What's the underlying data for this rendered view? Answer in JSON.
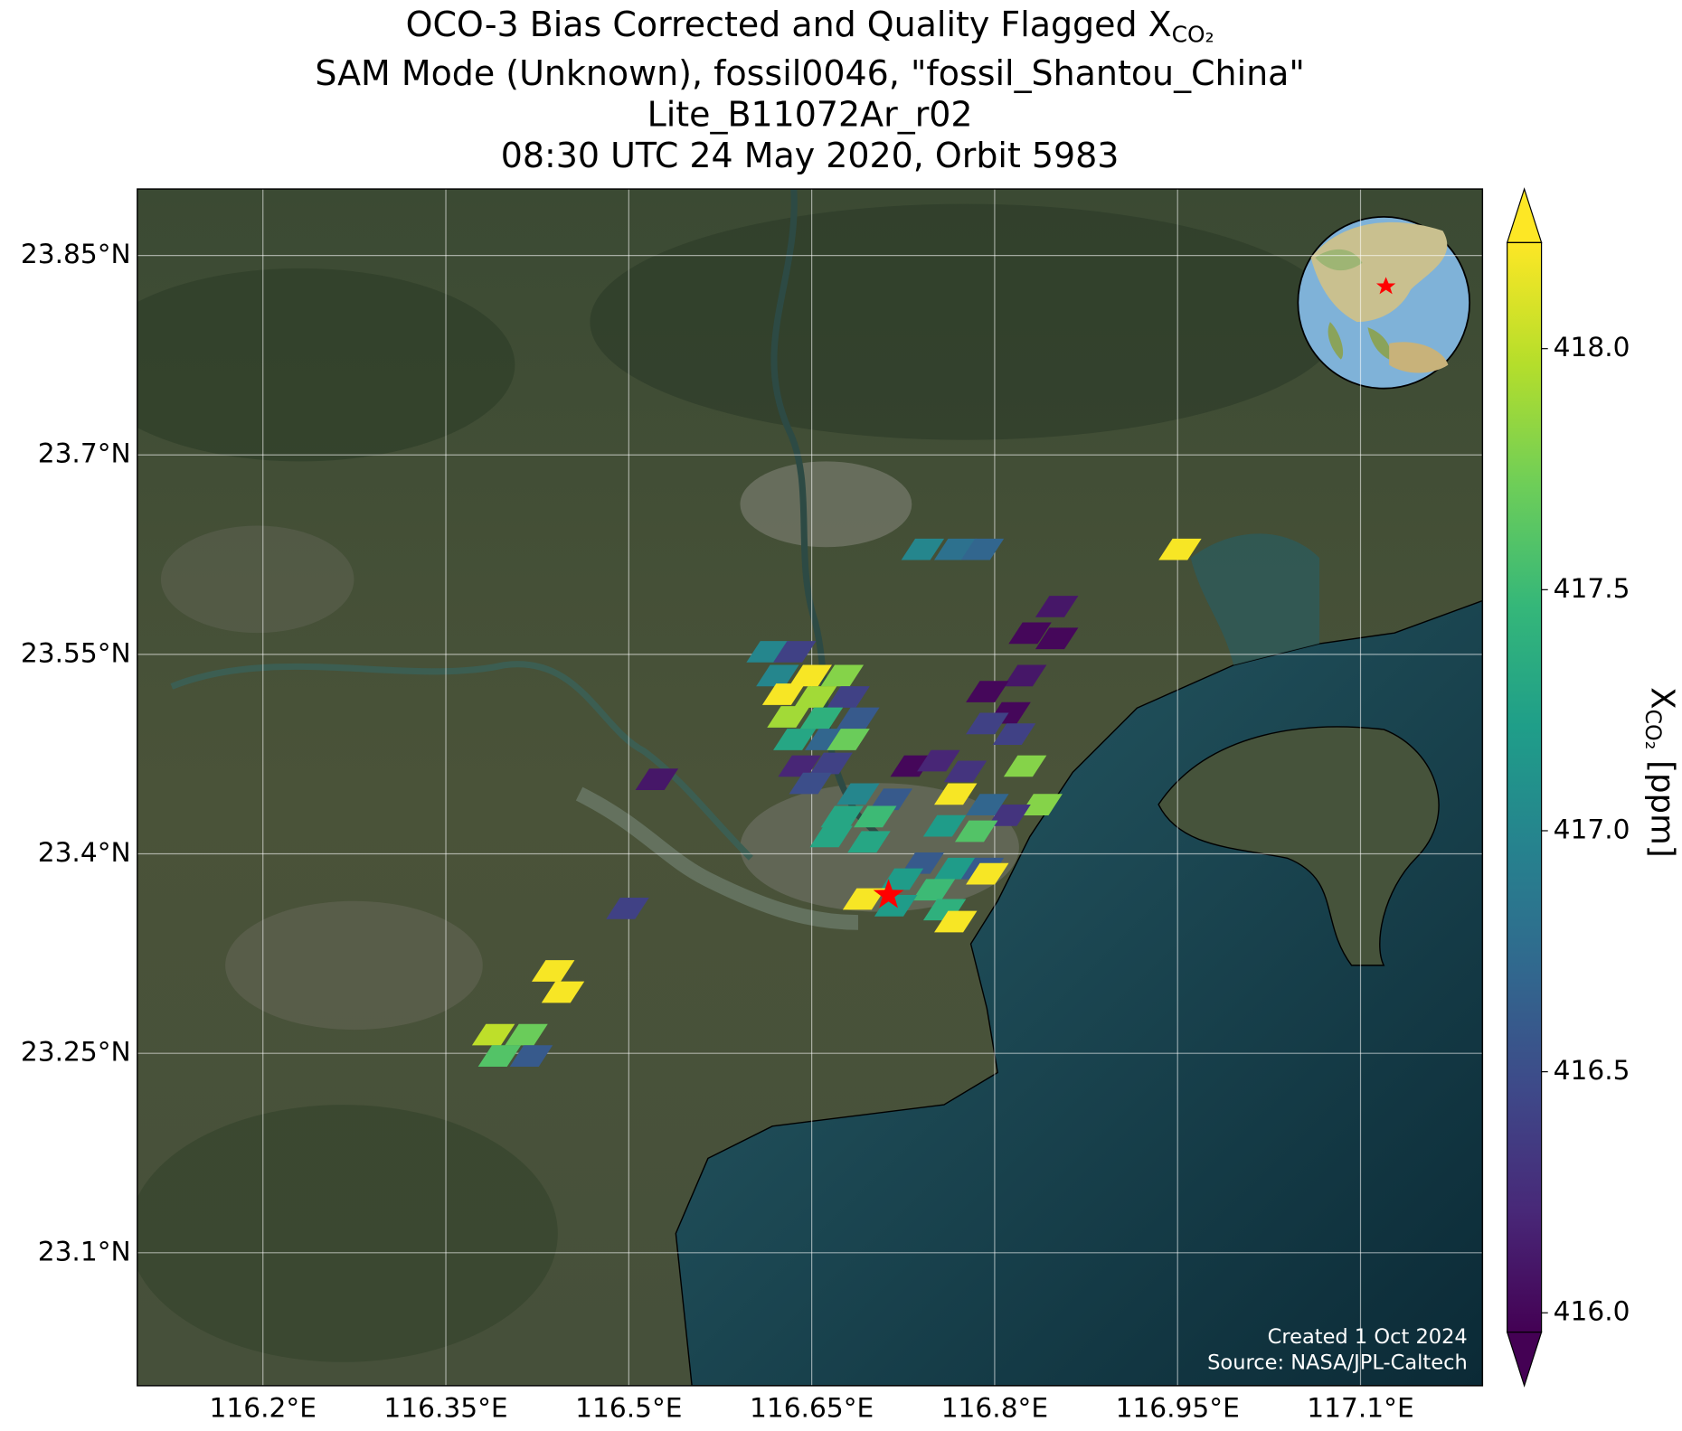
{
  "chart_data": {
    "type": "map",
    "title": {
      "text": "OCO-3 Bias Corrected and Quality Flagged X",
      "subscript": "CO₂"
    },
    "subtitle_lines": [
      "SAM Mode (Unknown), fossil0046, \"fossil_Shantou_China\"",
      "Lite_B11072Ar_r02",
      "08:30 UTC 24 May 2020, Orbit 5983"
    ],
    "xlim": [
      116.097,
      117.2
    ],
    "ylim": [
      23.0,
      23.9
    ],
    "xticks": [
      {
        "value": 116.2,
        "label": "116.2°E"
      },
      {
        "value": 116.35,
        "label": "116.35°E"
      },
      {
        "value": 116.5,
        "label": "116.5°E"
      },
      {
        "value": 116.65,
        "label": "116.65°E"
      },
      {
        "value": 116.8,
        "label": "116.8°E"
      },
      {
        "value": 116.95,
        "label": "116.95°E"
      },
      {
        "value": 117.1,
        "label": "117.1°E"
      }
    ],
    "yticks": [
      {
        "value": 23.85,
        "label": "23.85°N"
      },
      {
        "value": 23.7,
        "label": "23.7°N"
      },
      {
        "value": 23.55,
        "label": "23.55°N"
      },
      {
        "value": 23.4,
        "label": "23.4°N"
      },
      {
        "value": 23.25,
        "label": "23.25°N"
      },
      {
        "value": 23.1,
        "label": "23.1°N"
      }
    ],
    "grid": true,
    "colormap": "viridis",
    "clim": [
      415.96,
      418.22
    ],
    "colorbar": {
      "label": "X",
      "label_subscript": "CO₂",
      "label_unit": "[ppm]",
      "ticks": [
        {
          "value": 416,
          "label": "416.0"
        },
        {
          "value": 416.5,
          "label": "416.5"
        },
        {
          "value": 417,
          "label": "417.0"
        },
        {
          "value": 417.5,
          "label": "417.5"
        },
        {
          "value": 418,
          "label": "418.0"
        }
      ]
    },
    "footprints": [
      {
        "lon": 116.741,
        "lat": 23.629,
        "value": 417.0
      },
      {
        "lon": 116.768,
        "lat": 23.629,
        "value": 416.8
      },
      {
        "lon": 116.79,
        "lat": 23.629,
        "value": 416.7
      },
      {
        "lon": 116.952,
        "lat": 23.629,
        "value": 418.2
      },
      {
        "lon": 116.851,
        "lat": 23.586,
        "value": 416.1
      },
      {
        "lon": 116.829,
        "lat": 23.566,
        "value": 416.0
      },
      {
        "lon": 116.851,
        "lat": 23.562,
        "value": 416.0
      },
      {
        "lon": 116.825,
        "lat": 23.534,
        "value": 416.1
      },
      {
        "lon": 116.794,
        "lat": 23.522,
        "value": 416.0
      },
      {
        "lon": 116.812,
        "lat": 23.506,
        "value": 416.0
      },
      {
        "lon": 116.794,
        "lat": 23.498,
        "value": 416.4
      },
      {
        "lon": 116.816,
        "lat": 23.49,
        "value": 416.4
      },
      {
        "lon": 116.732,
        "lat": 23.466,
        "value": 416.0
      },
      {
        "lon": 116.754,
        "lat": 23.47,
        "value": 416.2
      },
      {
        "lon": 116.776,
        "lat": 23.462,
        "value": 416.3
      },
      {
        "lon": 116.825,
        "lat": 23.466,
        "value": 417.8
      },
      {
        "lon": 116.838,
        "lat": 23.437,
        "value": 417.8
      },
      {
        "lon": 116.812,
        "lat": 23.429,
        "value": 416.3
      },
      {
        "lon": 116.794,
        "lat": 23.437,
        "value": 416.7
      },
      {
        "lon": 116.614,
        "lat": 23.552,
        "value": 417.0
      },
      {
        "lon": 116.636,
        "lat": 23.552,
        "value": 416.4
      },
      {
        "lon": 116.622,
        "lat": 23.534,
        "value": 417.0
      },
      {
        "lon": 116.649,
        "lat": 23.534,
        "value": 418.2
      },
      {
        "lon": 116.675,
        "lat": 23.534,
        "value": 417.8
      },
      {
        "lon": 116.627,
        "lat": 23.52,
        "value": 418.2
      },
      {
        "lon": 116.653,
        "lat": 23.518,
        "value": 417.9
      },
      {
        "lon": 116.68,
        "lat": 23.518,
        "value": 416.4
      },
      {
        "lon": 116.631,
        "lat": 23.503,
        "value": 417.9
      },
      {
        "lon": 116.658,
        "lat": 23.502,
        "value": 417.4
      },
      {
        "lon": 116.688,
        "lat": 23.502,
        "value": 416.6
      },
      {
        "lon": 116.636,
        "lat": 23.486,
        "value": 417.3
      },
      {
        "lon": 116.662,
        "lat": 23.486,
        "value": 416.7
      },
      {
        "lon": 116.68,
        "lat": 23.486,
        "value": 417.7
      },
      {
        "lon": 116.64,
        "lat": 23.466,
        "value": 416.2
      },
      {
        "lon": 116.666,
        "lat": 23.468,
        "value": 416.4
      },
      {
        "lon": 116.649,
        "lat": 23.453,
        "value": 416.5
      },
      {
        "lon": 116.523,
        "lat": 23.456,
        "value": 416.1
      },
      {
        "lon": 116.688,
        "lat": 23.445,
        "value": 417.0
      },
      {
        "lon": 116.715,
        "lat": 23.441,
        "value": 416.6
      },
      {
        "lon": 116.675,
        "lat": 23.428,
        "value": 417.3
      },
      {
        "lon": 116.702,
        "lat": 23.428,
        "value": 417.5
      },
      {
        "lon": 116.666,
        "lat": 23.413,
        "value": 417.3
      },
      {
        "lon": 116.697,
        "lat": 23.409,
        "value": 417.3
      },
      {
        "lon": 116.768,
        "lat": 23.445,
        "value": 418.2
      },
      {
        "lon": 116.785,
        "lat": 23.417,
        "value": 417.6
      },
      {
        "lon": 116.759,
        "lat": 23.421,
        "value": 417.2
      },
      {
        "lon": 116.741,
        "lat": 23.393,
        "value": 416.6
      },
      {
        "lon": 116.768,
        "lat": 23.389,
        "value": 417.2
      },
      {
        "lon": 116.79,
        "lat": 23.389,
        "value": 416.6
      },
      {
        "lon": 116.724,
        "lat": 23.381,
        "value": 417.2
      },
      {
        "lon": 116.75,
        "lat": 23.373,
        "value": 417.5
      },
      {
        "lon": 116.794,
        "lat": 23.385,
        "value": 418.2
      },
      {
        "lon": 116.693,
        "lat": 23.366,
        "value": 418.2
      },
      {
        "lon": 116.719,
        "lat": 23.361,
        "value": 417.2
      },
      {
        "lon": 116.759,
        "lat": 23.358,
        "value": 417.4
      },
      {
        "lon": 116.768,
        "lat": 23.349,
        "value": 418.2
      },
      {
        "lon": 116.499,
        "lat": 23.359,
        "value": 416.4
      },
      {
        "lon": 116.438,
        "lat": 23.312,
        "value": 418.2
      },
      {
        "lon": 116.446,
        "lat": 23.296,
        "value": 418.2
      },
      {
        "lon": 116.389,
        "lat": 23.264,
        "value": 418.0
      },
      {
        "lon": 116.416,
        "lat": 23.264,
        "value": 417.7
      },
      {
        "lon": 116.394,
        "lat": 23.248,
        "value": 417.6
      },
      {
        "lon": 116.42,
        "lat": 23.248,
        "value": 416.6
      }
    ],
    "target": {
      "lon": 116.713,
      "lat": 23.369,
      "color": "#ff0000"
    },
    "credits": [
      "Created 1 Oct 2024",
      "Source: NASA/JPL-Caltech"
    ]
  }
}
